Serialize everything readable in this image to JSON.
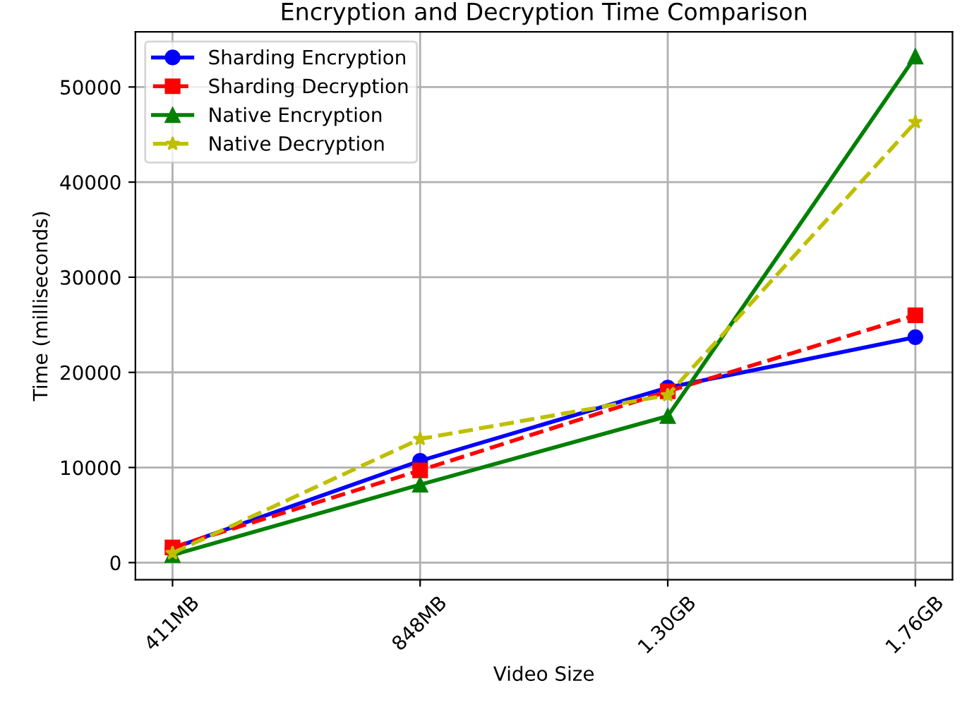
{
  "chart_data": {
    "type": "line",
    "title": "Encryption and Decryption Time Comparison",
    "xlabel": "Video Size",
    "ylabel": "Time (milliseconds)",
    "categories": [
      "411MB",
      "848MB",
      "1.30GB",
      "1.76GB"
    ],
    "series": [
      {
        "name": "Sharding Encryption",
        "color": "#0000ff",
        "values": [
          1500,
          10700,
          18400,
          23700
        ],
        "marker": "circle",
        "line_style": "solid"
      },
      {
        "name": "Sharding Decryption",
        "color": "#ff0000",
        "values": [
          1600,
          9700,
          18000,
          26000
        ],
        "marker": "square",
        "line_style": "dashed"
      },
      {
        "name": "Native Encryption",
        "color": "#008000",
        "values": [
          800,
          8200,
          15400,
          53200
        ],
        "marker": "triangle",
        "line_style": "solid"
      },
      {
        "name": "Native Decryption",
        "color": "#bfbf00",
        "values": [
          1000,
          13000,
          17600,
          46300
        ],
        "marker": "star",
        "line_style": "dashed"
      }
    ],
    "ylim": [
      -1800,
      55800
    ],
    "yticks": [
      0,
      10000,
      20000,
      30000,
      40000,
      50000
    ],
    "grid": true,
    "legend": "top left"
  }
}
